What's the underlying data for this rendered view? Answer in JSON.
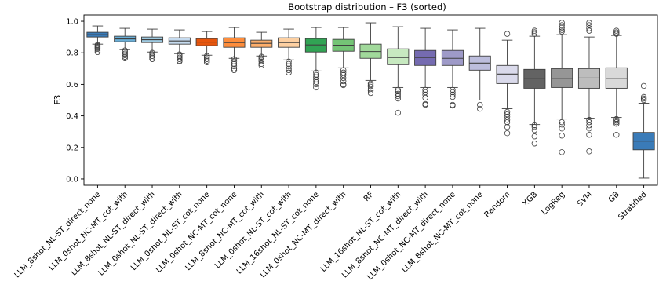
{
  "chart_data": {
    "type": "boxplot",
    "title": "Bootstrap distribution – F3 (sorted)",
    "xlabel": "",
    "ylabel": "F3",
    "ylim": [
      -0.04,
      1.04
    ],
    "yticks": [
      "0.0",
      "0.2",
      "0.4",
      "0.6",
      "0.8",
      "1.0"
    ],
    "ytick_values": [
      0.0,
      0.2,
      0.4,
      0.6,
      0.8,
      1.0
    ],
    "grid": false,
    "legend": "none",
    "categories": [
      "LLM_8shot_NL-ST_direct_none",
      "LLM_0shot_NC-MT_cot_with",
      "LLM_8shot_NL-ST_direct_with",
      "LLM_0shot_NL-ST_direct_with",
      "LLM_0shot_NL-ST_cot_none",
      "LLM_0shot_NC-MT_cot_none",
      "LLM_8shot_NC-MT_cot_with",
      "LLM_0shot_NL-ST_cot_with",
      "LLM_16shot_NL-ST_cot_none",
      "LLM_0shot_NC-MT_direct_with",
      "RF",
      "LLM_16shot_NL-ST_cot_with",
      "LLM_8shot_NC-MT_direct_with",
      "LLM_0shot_NC-MT_direct_none",
      "LLM_8shot_NC-MT_cot_none",
      "Random",
      "XGB",
      "LogReg",
      "SVM",
      "GB",
      "Stratified"
    ],
    "boxes": [
      {
        "q1": 0.9,
        "median": 0.915,
        "q3": 0.93,
        "whisker_low": 0.855,
        "whisker_high": 0.97,
        "outliers": [
          0.85,
          0.845,
          0.84,
          0.835,
          0.83,
          0.825,
          0.815,
          0.805
        ],
        "color": "#3a7bb8"
      },
      {
        "q1": 0.87,
        "median": 0.888,
        "q3": 0.905,
        "whisker_low": 0.82,
        "whisker_high": 0.955,
        "outliers": [
          0.815,
          0.805,
          0.795,
          0.785,
          0.775,
          0.765
        ],
        "color": "#6aaed6"
      },
      {
        "q1": 0.865,
        "median": 0.883,
        "q3": 0.9,
        "whisker_low": 0.805,
        "whisker_high": 0.95,
        "outliers": [
          0.8,
          0.79,
          0.78,
          0.77,
          0.76
        ],
        "color": "#9ecae1"
      },
      {
        "q1": 0.855,
        "median": 0.875,
        "q3": 0.895,
        "whisker_low": 0.795,
        "whisker_high": 0.945,
        "outliers": [
          0.79,
          0.78,
          0.77,
          0.76,
          0.75,
          0.745
        ],
        "color": "#c6dbef"
      },
      {
        "q1": 0.845,
        "median": 0.868,
        "q3": 0.89,
        "whisker_low": 0.785,
        "whisker_high": 0.935,
        "outliers": [
          0.78,
          0.77,
          0.76,
          0.75,
          0.74
        ],
        "color": "#e6550d"
      },
      {
        "q1": 0.835,
        "median": 0.865,
        "q3": 0.895,
        "whisker_low": 0.765,
        "whisker_high": 0.96,
        "outliers": [
          0.76,
          0.745,
          0.73,
          0.715,
          0.7,
          0.69
        ],
        "color": "#fd8d3c"
      },
      {
        "q1": 0.835,
        "median": 0.86,
        "q3": 0.88,
        "whisker_low": 0.78,
        "whisker_high": 0.93,
        "outliers": [
          0.775,
          0.765,
          0.755,
          0.745,
          0.73,
          0.72
        ],
        "color": "#fdae6b"
      },
      {
        "q1": 0.835,
        "median": 0.865,
        "q3": 0.895,
        "whisker_low": 0.755,
        "whisker_high": 0.95,
        "outliers": [
          0.745,
          0.73,
          0.715,
          0.7,
          0.69,
          0.675
        ],
        "color": "#fdd0a2"
      },
      {
        "q1": 0.805,
        "median": 0.85,
        "q3": 0.89,
        "whisker_low": 0.685,
        "whisker_high": 0.96,
        "outliers": [
          0.675,
          0.66,
          0.645,
          0.63,
          0.615,
          0.6,
          0.58
        ],
        "color": "#31a354"
      },
      {
        "q1": 0.81,
        "median": 0.848,
        "q3": 0.885,
        "whisker_low": 0.705,
        "whisker_high": 0.96,
        "outliers": [
          0.69,
          0.675,
          0.66,
          0.64,
          0.62,
          0.6,
          0.595
        ],
        "color": "#74c476"
      },
      {
        "q1": 0.765,
        "median": 0.808,
        "q3": 0.855,
        "whisker_low": 0.625,
        "whisker_high": 0.99,
        "outliers": [
          0.605,
          0.595,
          0.585,
          0.57,
          0.56,
          0.545
        ],
        "color": "#a1d99b"
      },
      {
        "q1": 0.725,
        "median": 0.77,
        "q3": 0.825,
        "whisker_low": 0.58,
        "whisker_high": 0.965,
        "outliers": [
          0.565,
          0.555,
          0.54,
          0.525,
          0.51,
          0.42
        ],
        "color": "#c7e9c0"
      },
      {
        "q1": 0.72,
        "median": 0.77,
        "q3": 0.815,
        "whisker_low": 0.58,
        "whisker_high": 0.955,
        "outliers": [
          0.565,
          0.55,
          0.535,
          0.515,
          0.475,
          0.47
        ],
        "color": "#756bb1"
      },
      {
        "q1": 0.72,
        "median": 0.765,
        "q3": 0.815,
        "whisker_low": 0.58,
        "whisker_high": 0.945,
        "outliers": [
          0.565,
          0.55,
          0.535,
          0.52,
          0.47,
          0.465
        ],
        "color": "#9e9ac8"
      },
      {
        "q1": 0.69,
        "median": 0.735,
        "q3": 0.78,
        "whisker_low": 0.5,
        "whisker_high": 0.955,
        "outliers": [
          0.47,
          0.445
        ],
        "color": "#bcbddc"
      },
      {
        "q1": 0.605,
        "median": 0.665,
        "q3": 0.72,
        "whisker_low": 0.445,
        "whisker_high": 0.88,
        "outliers": [
          0.92,
          0.425,
          0.41,
          0.395,
          0.375,
          0.36,
          0.33,
          0.29
        ],
        "color": "#dadaeb"
      },
      {
        "q1": 0.575,
        "median": 0.638,
        "q3": 0.695,
        "whisker_low": 0.345,
        "whisker_high": 0.905,
        "outliers": [
          0.94,
          0.93,
          0.92,
          0.34,
          0.33,
          0.31,
          0.27,
          0.225
        ],
        "color": "#636363"
      },
      {
        "q1": 0.58,
        "median": 0.638,
        "q3": 0.7,
        "whisker_low": 0.38,
        "whisker_high": 0.915,
        "outliers": [
          0.99,
          0.975,
          0.96,
          0.945,
          0.935,
          0.36,
          0.345,
          0.32,
          0.275,
          0.17
        ],
        "color": "#969696"
      },
      {
        "q1": 0.575,
        "median": 0.64,
        "q3": 0.7,
        "whisker_low": 0.385,
        "whisker_high": 0.9,
        "outliers": [
          0.99,
          0.975,
          0.955,
          0.94,
          0.375,
          0.36,
          0.34,
          0.32,
          0.28,
          0.175
        ],
        "color": "#bdbdbd"
      },
      {
        "q1": 0.575,
        "median": 0.638,
        "q3": 0.705,
        "whisker_low": 0.39,
        "whisker_high": 0.91,
        "outliers": [
          0.94,
          0.93,
          0.92,
          0.38,
          0.37,
          0.36,
          0.35,
          0.28
        ],
        "color": "#d9d9d9"
      },
      {
        "q1": 0.185,
        "median": 0.24,
        "q3": 0.295,
        "whisker_low": 0.005,
        "whisker_high": 0.48,
        "outliers": [
          0.59,
          0.52,
          0.51,
          0.5
        ],
        "color": "#3a7bb8"
      }
    ]
  }
}
